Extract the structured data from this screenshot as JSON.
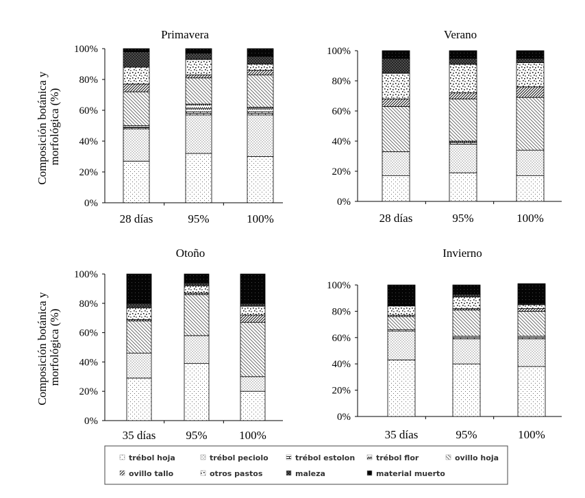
{
  "ylabel": "Composición botánica y morfológica (%)",
  "y_tick_labels": [
    "0%",
    "20%",
    "40%",
    "60%",
    "80%",
    "100%"
  ],
  "legend": [
    {
      "label": "trébol hoja",
      "pattern": "dots-sparse"
    },
    {
      "label": "trébol peciolo",
      "pattern": "dots-dense"
    },
    {
      "label": "trébol estolon",
      "pattern": "bricks"
    },
    {
      "label": "trébol flor",
      "pattern": "zigzag"
    },
    {
      "label": "ovillo hoja",
      "pattern": "diag-back"
    },
    {
      "label": "ovillo tallo",
      "pattern": "diag-fwd"
    },
    {
      "label": "otros pastos",
      "pattern": "confetti"
    },
    {
      "label": "maleza",
      "pattern": "black-dots"
    },
    {
      "label": "material muerto",
      "pattern": "solid-black"
    }
  ],
  "chart_data": [
    {
      "type": "bar",
      "stacked": true,
      "title": "Primavera",
      "categories": [
        "28 días",
        "95%",
        "100%"
      ],
      "ylim": [
        0,
        100
      ],
      "series": [
        {
          "name": "trébol hoja",
          "values": [
            27,
            32,
            30
          ]
        },
        {
          "name": "trébol peciolo",
          "values": [
            21,
            25,
            27
          ]
        },
        {
          "name": "trébol estolon",
          "values": [
            1,
            2,
            2
          ]
        },
        {
          "name": "trébol flor",
          "values": [
            1,
            5,
            3
          ]
        },
        {
          "name": "ovillo hoja",
          "values": [
            22,
            17,
            21
          ]
        },
        {
          "name": "ovillo tallo",
          "values": [
            5,
            2,
            3
          ]
        },
        {
          "name": "otros pastos",
          "values": [
            11,
            10,
            4
          ]
        },
        {
          "name": "maleza",
          "values": [
            10,
            4,
            5
          ]
        },
        {
          "name": "material muerto",
          "values": [
            2,
            3,
            5
          ]
        }
      ]
    },
    {
      "type": "bar",
      "stacked": true,
      "title": "Verano",
      "categories": [
        "28 días",
        "95%",
        "100%"
      ],
      "ylim": [
        0,
        100
      ],
      "series": [
        {
          "name": "trébol hoja",
          "values": [
            17,
            19,
            17
          ]
        },
        {
          "name": "trébol peciolo",
          "values": [
            16,
            19,
            17
          ]
        },
        {
          "name": "trébol estolon",
          "values": [
            0,
            1,
            0
          ]
        },
        {
          "name": "trébol flor",
          "values": [
            0,
            1,
            0
          ]
        },
        {
          "name": "ovillo hoja",
          "values": [
            30,
            28,
            35
          ]
        },
        {
          "name": "ovillo tallo",
          "values": [
            5,
            4,
            7
          ]
        },
        {
          "name": "otros pastos",
          "values": [
            17,
            19,
            16
          ]
        },
        {
          "name": "maleza",
          "values": [
            10,
            4,
            3
          ]
        },
        {
          "name": "material muerto",
          "values": [
            5,
            5,
            5
          ]
        }
      ]
    },
    {
      "type": "bar",
      "stacked": true,
      "title": "Otoño",
      "categories": [
        "35 días",
        "95%",
        "100%"
      ],
      "ylim": [
        0,
        100
      ],
      "series": [
        {
          "name": "trébol hoja",
          "values": [
            29,
            39,
            20
          ]
        },
        {
          "name": "trébol peciolo",
          "values": [
            17,
            19,
            10
          ]
        },
        {
          "name": "trébol estolon",
          "values": [
            0,
            0,
            0
          ]
        },
        {
          "name": "trébol flor",
          "values": [
            0,
            0,
            0
          ]
        },
        {
          "name": "ovillo hoja",
          "values": [
            22,
            28,
            37
          ]
        },
        {
          "name": "ovillo tallo",
          "values": [
            1,
            1,
            5
          ]
        },
        {
          "name": "otros pastos",
          "values": [
            8,
            5,
            6
          ]
        },
        {
          "name": "maleza",
          "values": [
            3,
            2,
            2
          ]
        },
        {
          "name": "material muerto",
          "values": [
            20,
            6,
            20
          ]
        }
      ]
    },
    {
      "type": "bar",
      "stacked": true,
      "title": "Invierno",
      "categories": [
        "35 días",
        "95%",
        "100%"
      ],
      "ylim": [
        0,
        100
      ],
      "series": [
        {
          "name": "trébol hoja",
          "values": [
            43,
            40,
            38
          ]
        },
        {
          "name": "trébol peciolo",
          "values": [
            22,
            19,
            21
          ]
        },
        {
          "name": "trébol estolon",
          "values": [
            1,
            1,
            1
          ]
        },
        {
          "name": "trébol flor",
          "values": [
            0,
            1,
            1
          ]
        },
        {
          "name": "ovillo hoja",
          "values": [
            10,
            20,
            19
          ]
        },
        {
          "name": "ovillo tallo",
          "values": [
            1,
            1,
            2
          ]
        },
        {
          "name": "otros pastos",
          "values": [
            7,
            9,
            3
          ]
        },
        {
          "name": "maleza",
          "values": [
            0,
            2,
            1
          ]
        },
        {
          "name": "material muerto",
          "values": [
            16,
            7,
            15
          ]
        }
      ]
    }
  ]
}
